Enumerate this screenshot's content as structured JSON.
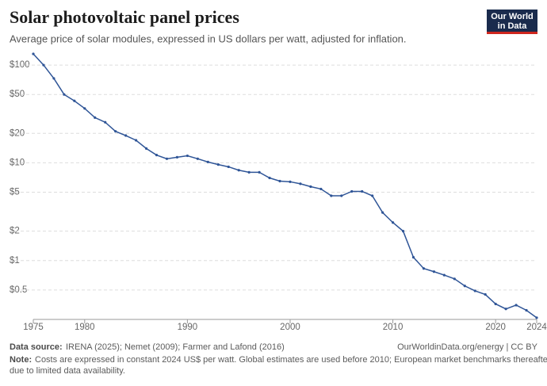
{
  "chart_data": {
    "type": "line",
    "title": "Solar photovoltaic panel prices",
    "subtitle": "Average price of solar modules, expressed in US dollars per watt, adjusted for inflation.",
    "x": [
      1975,
      1976,
      1977,
      1978,
      1979,
      1980,
      1981,
      1982,
      1983,
      1984,
      1985,
      1986,
      1987,
      1988,
      1989,
      1990,
      1991,
      1992,
      1993,
      1994,
      1995,
      1996,
      1997,
      1998,
      1999,
      2000,
      2001,
      2002,
      2003,
      2004,
      2005,
      2006,
      2007,
      2008,
      2009,
      2010,
      2011,
      2012,
      2013,
      2014,
      2015,
      2016,
      2017,
      2018,
      2019,
      2020,
      2021,
      2022,
      2023,
      2024
    ],
    "values": [
      130,
      100,
      73,
      50,
      43,
      36,
      29,
      26,
      21,
      19,
      17,
      14,
      12,
      11,
      11.4,
      11.8,
      11,
      10.2,
      9.6,
      9.1,
      8.4,
      8,
      8,
      7,
      6.5,
      6.4,
      6.1,
      5.7,
      5.4,
      4.6,
      4.6,
      5.1,
      5.1,
      4.6,
      3.1,
      2.45,
      2,
      1.08,
      0.83,
      0.77,
      0.71,
      0.65,
      0.55,
      0.49,
      0.45,
      0.36,
      0.32,
      0.35,
      0.31,
      0.26
    ],
    "color": "#2f5597",
    "log_scale": true,
    "grid": true,
    "xlim": [
      1975,
      2024
    ],
    "xticks": [
      1975,
      1980,
      1990,
      2000,
      2010,
      2020,
      2024
    ],
    "ylim": [
      0.25,
      135
    ],
    "yticks": [
      {
        "value": 0.5,
        "label": "$0.5"
      },
      {
        "value": 1,
        "label": "$1"
      },
      {
        "value": 2,
        "label": "$2"
      },
      {
        "value": 5,
        "label": "$5"
      },
      {
        "value": 10,
        "label": "$10"
      },
      {
        "value": 20,
        "label": "$20"
      },
      {
        "value": 50,
        "label": "$50"
      },
      {
        "value": 100,
        "label": "$100"
      }
    ]
  },
  "footer": {
    "source_label": "Data source:",
    "source": "IRENA (2025); Nemet (2009); Farmer and Lafond (2016)",
    "site": "OurWorldinData.org/energy | CC BY",
    "note_label": "Note:",
    "note_line1": "Costs are expressed in constant 2024 US$ per watt. Global estimates are used before 2010; European market benchmarks thereafter",
    "note_line2": "due to limited data availability."
  },
  "logo": {
    "line1": "Our World",
    "line2": "in Data"
  }
}
